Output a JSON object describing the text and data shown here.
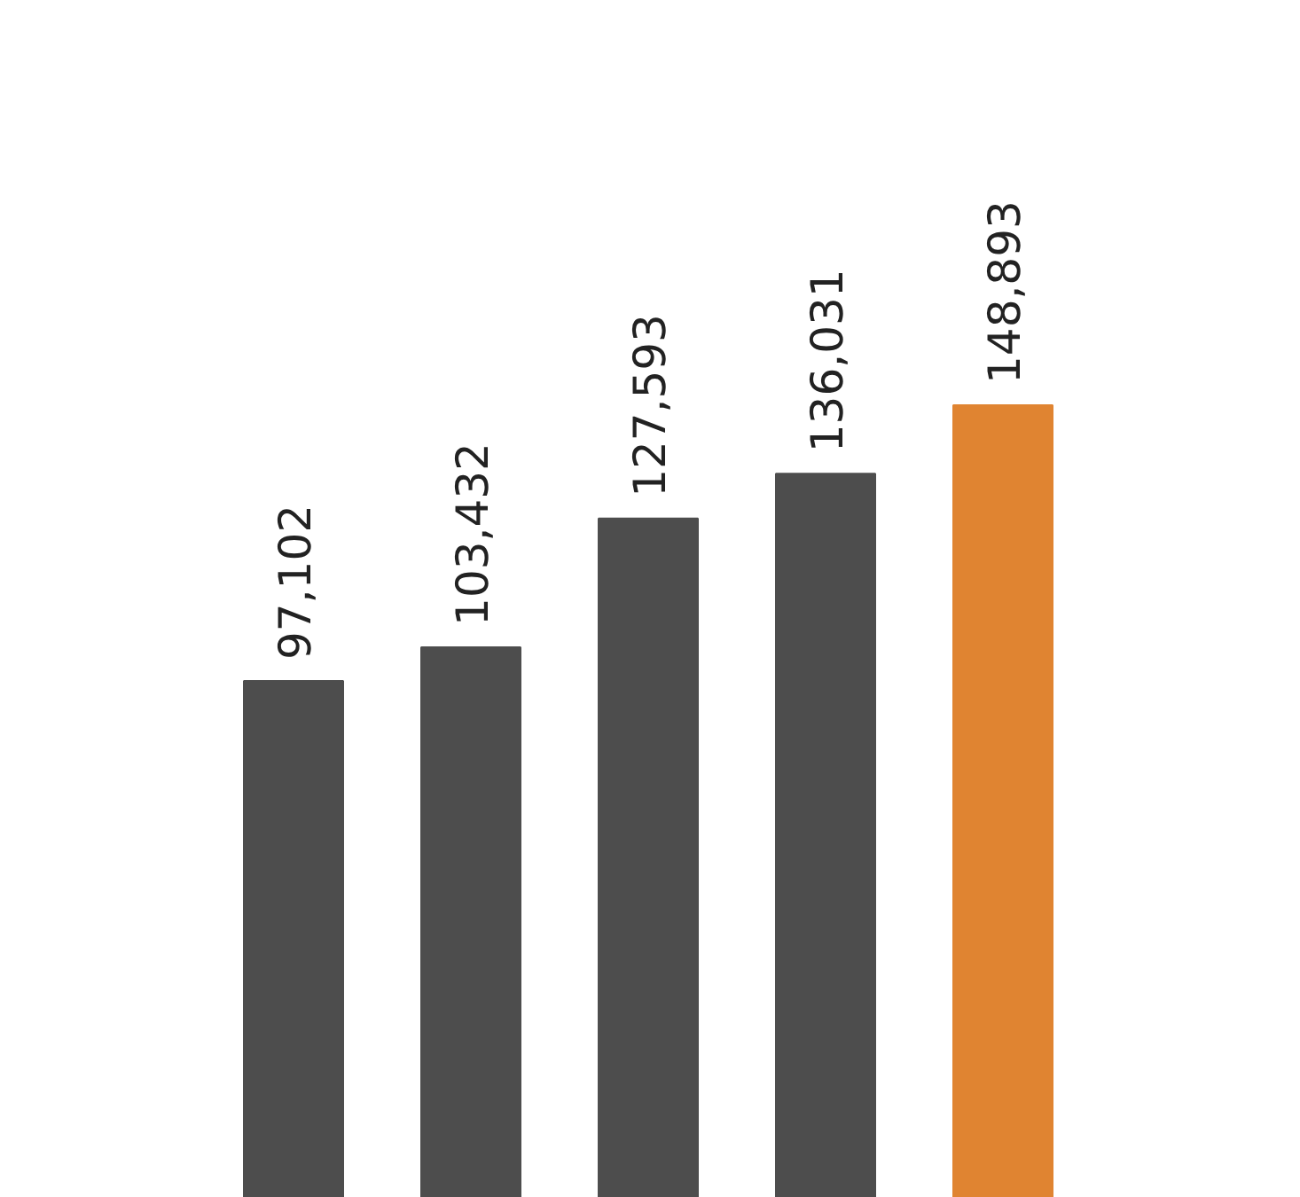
{
  "chart_data": {
    "type": "bar",
    "categories": [
      null,
      null,
      null,
      null,
      null
    ],
    "values": [
      97102,
      103432,
      127593,
      136031,
      148893
    ],
    "value_labels": [
      "97,102",
      "103,432",
      "127,593",
      "136,031",
      "148,893"
    ],
    "colors": [
      "#4d4d4d",
      "#4d4d4d",
      "#4d4d4d",
      "#4d4d4d",
      "#e08431"
    ]
  }
}
